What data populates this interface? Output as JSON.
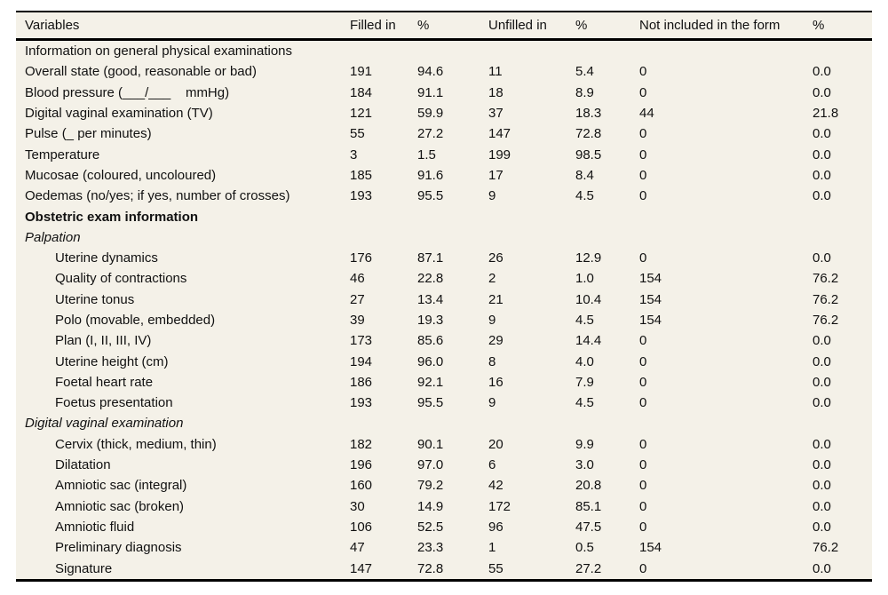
{
  "table": {
    "columns": [
      "Variables",
      "Filled in",
      "%",
      "Unfilled in",
      "%",
      "Not included in the form",
      "%"
    ],
    "rows": [
      {
        "label": "Information on general physical examinations",
        "style": "section",
        "values": null
      },
      {
        "label": "Overall state (good, reasonable or bad)",
        "style": "item",
        "values": [
          "191",
          "94.6",
          "11",
          "5.4",
          "0",
          "0.0"
        ]
      },
      {
        "label": "Blood pressure (___/___    mmHg)",
        "style": "item",
        "values": [
          "184",
          "91.1",
          "18",
          "8.9",
          "0",
          "0.0"
        ]
      },
      {
        "label": "Digital vaginal examination (TV)",
        "style": "item",
        "values": [
          "121",
          "59.9",
          "37",
          "18.3",
          "44",
          "21.8"
        ]
      },
      {
        "label": "Pulse (_ per minutes)",
        "style": "item",
        "values": [
          "55",
          "27.2",
          "147",
          "72.8",
          "0",
          "0.0"
        ]
      },
      {
        "label": "Temperature",
        "style": "item",
        "values": [
          "3",
          "1.5",
          "199",
          "98.5",
          "0",
          "0.0"
        ]
      },
      {
        "label": "Mucosae (coloured, uncoloured)",
        "style": "item",
        "values": [
          "185",
          "91.6",
          "17",
          "8.4",
          "0",
          "0.0"
        ]
      },
      {
        "label": "Oedemas (no/yes; if yes, number of crosses)",
        "style": "item",
        "values": [
          "193",
          "95.5",
          "9",
          "4.5",
          "0",
          "0.0"
        ]
      },
      {
        "label": "Obstetric exam information",
        "style": "section-bold",
        "values": null
      },
      {
        "label": "Palpation",
        "style": "section-italic",
        "values": null
      },
      {
        "label": "Uterine dynamics",
        "style": "subitem",
        "values": [
          "176",
          "87.1",
          "26",
          "12.9",
          "0",
          "0.0"
        ]
      },
      {
        "label": "Quality of contractions",
        "style": "subitem",
        "values": [
          "46",
          "22.8",
          "2",
          "1.0",
          "154",
          "76.2"
        ]
      },
      {
        "label": "Uterine tonus",
        "style": "subitem",
        "values": [
          "27",
          "13.4",
          "21",
          "10.4",
          "154",
          "76.2"
        ]
      },
      {
        "label": "Polo (movable, embedded)",
        "style": "subitem",
        "values": [
          "39",
          "19.3",
          "9",
          "4.5",
          "154",
          "76.2"
        ]
      },
      {
        "label": "Plan (I, II, III, IV)",
        "style": "subitem",
        "values": [
          "173",
          "85.6",
          "29",
          "14.4",
          "0",
          "0.0"
        ]
      },
      {
        "label": "Uterine height (cm)",
        "style": "subitem",
        "values": [
          "194",
          "96.0",
          "8",
          "4.0",
          "0",
          "0.0"
        ]
      },
      {
        "label": "Foetal heart rate",
        "style": "subitem",
        "values": [
          "186",
          "92.1",
          "16",
          "7.9",
          "0",
          "0.0"
        ]
      },
      {
        "label": "Foetus presentation",
        "style": "subitem",
        "values": [
          "193",
          "95.5",
          "9",
          "4.5",
          "0",
          "0.0"
        ]
      },
      {
        "label": "Digital vaginal examination",
        "style": "section-italic",
        "values": null
      },
      {
        "label": "Cervix (thick, medium, thin)",
        "style": "subitem",
        "values": [
          "182",
          "90.1",
          "20",
          "9.9",
          "0",
          "0.0"
        ]
      },
      {
        "label": "Dilatation",
        "style": "subitem",
        "values": [
          "196",
          "97.0",
          "6",
          "3.0",
          "0",
          "0.0"
        ]
      },
      {
        "label": "Amniotic sac (integral)",
        "style": "subitem",
        "values": [
          "160",
          "79.2",
          "42",
          "20.8",
          "0",
          "0.0"
        ]
      },
      {
        "label": "Amniotic sac (broken)",
        "style": "subitem",
        "values": [
          "30",
          "14.9",
          "172",
          "85.1",
          "0",
          "0.0"
        ]
      },
      {
        "label": "Amniotic fluid",
        "style": "subitem",
        "values": [
          "106",
          "52.5",
          "96",
          "47.5",
          "0",
          "0.0"
        ]
      },
      {
        "label": "Preliminary diagnosis",
        "style": "subitem",
        "values": [
          "47",
          "23.3",
          "1",
          "0.5",
          "154",
          "76.2"
        ]
      },
      {
        "label": "Signature",
        "style": "subitem",
        "values": [
          "147",
          "72.8",
          "55",
          "27.2",
          "0",
          "0.0"
        ]
      }
    ],
    "colors": {
      "table_background": "#f4f1e8",
      "rule": "#000000",
      "text": "#111111"
    }
  }
}
